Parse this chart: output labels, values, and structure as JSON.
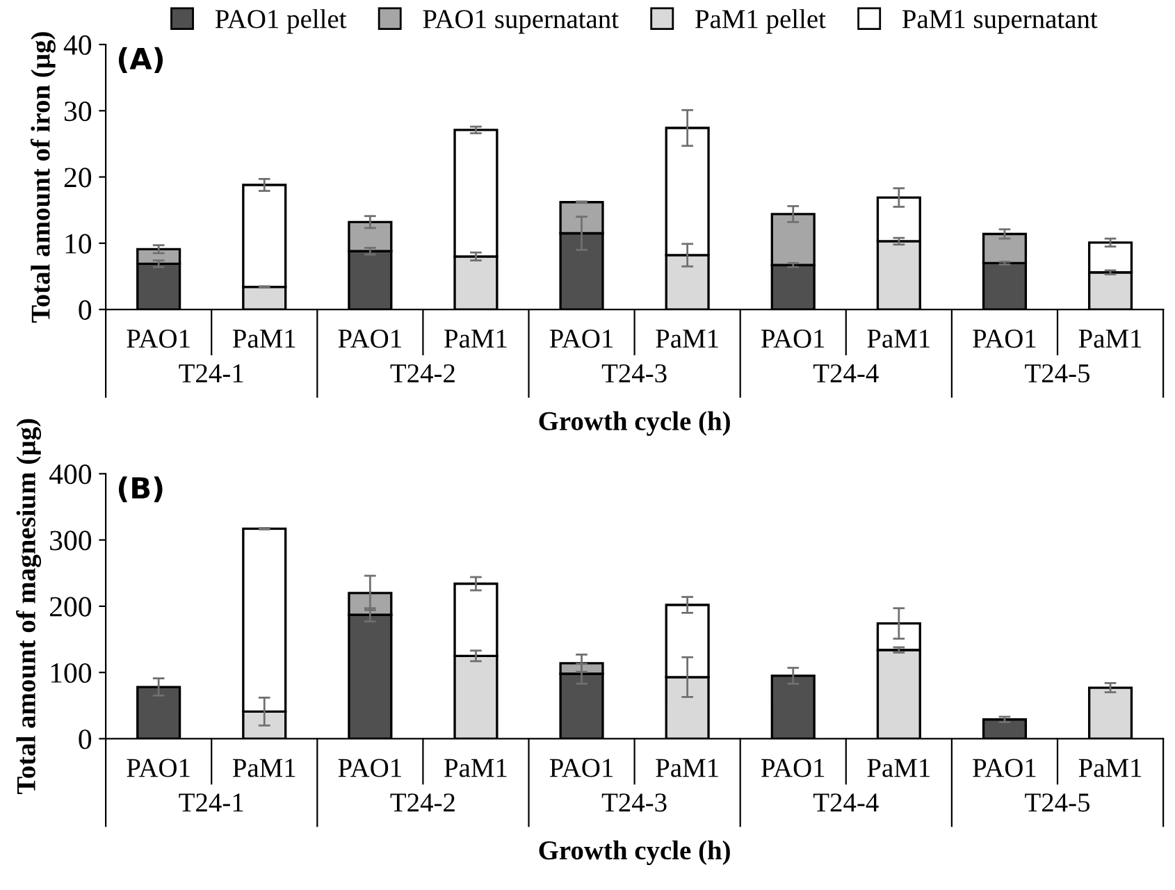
{
  "chart_data": [
    {
      "type": "bar",
      "title": "(A)",
      "xlabel": "Growth cycle (h)",
      "ylabel": "Total amount of iron (µg)",
      "stacked": true,
      "legend": "top",
      "grid": false,
      "categories": [
        "PAO1",
        "PaM1",
        "PAO1",
        "PaM1",
        "PAO1",
        "PaM1",
        "PAO1",
        "PaM1",
        "PAO1",
        "PaM1"
      ],
      "annotations": [
        "T24-1",
        "T24-2",
        "T24-3",
        "T24-4",
        "T24-5"
      ],
      "ylim": [
        0,
        40
      ],
      "yticks": [
        0,
        10,
        20,
        30,
        40
      ],
      "series": [
        {
          "name": "PAO1 pellet",
          "color": "#505050",
          "values": [
            6.9,
            null,
            8.8,
            null,
            11.5,
            null,
            6.7,
            null,
            7.0,
            null
          ],
          "errors": [
            0.5,
            null,
            0.5,
            null,
            2.5,
            null,
            0.3,
            null,
            0.2,
            null
          ]
        },
        {
          "name": "PAO1 supernatant",
          "color": "#a6a6a6",
          "values": [
            2.2,
            null,
            4.4,
            null,
            4.7,
            null,
            7.7,
            null,
            4.4,
            null
          ],
          "errors": [
            0.6,
            null,
            0.9,
            null,
            0.1,
            null,
            1.2,
            null,
            0.7,
            null
          ]
        },
        {
          "name": "PaM1 pellet",
          "color": "#d9d9d9",
          "values": [
            null,
            3.4,
            null,
            8.0,
            null,
            8.2,
            null,
            10.3,
            null,
            5.6
          ],
          "errors": [
            null,
            0.1,
            null,
            0.6,
            null,
            1.7,
            null,
            0.5,
            null,
            0.3
          ]
        },
        {
          "name": "PaM1 supernatant",
          "color": "#ffffff",
          "values": [
            null,
            15.4,
            null,
            19.1,
            null,
            19.2,
            null,
            6.6,
            null,
            4.5
          ],
          "errors": [
            null,
            0.9,
            null,
            0.5,
            null,
            2.7,
            null,
            1.4,
            null,
            0.6
          ]
        }
      ]
    },
    {
      "type": "bar",
      "title": "(B)",
      "xlabel": "Growth cycle (h)",
      "ylabel": "Total amount of magnesium (µg)",
      "stacked": true,
      "legend": false,
      "grid": false,
      "categories": [
        "PAO1",
        "PaM1",
        "PAO1",
        "PaM1",
        "PAO1",
        "PaM1",
        "PAO1",
        "PaM1",
        "PAO1",
        "PaM1"
      ],
      "annotations": [
        "T24-1",
        "T24-2",
        "T24-3",
        "T24-4",
        "T24-5"
      ],
      "ylim": [
        0,
        400
      ],
      "yticks": [
        0,
        100,
        200,
        300,
        400
      ],
      "series": [
        {
          "color": "#505050",
          "values": [
            78,
            null,
            187,
            null,
            98,
            null,
            95,
            null,
            29,
            null
          ],
          "errors": [
            13,
            null,
            10,
            null,
            15,
            null,
            12,
            null,
            4,
            null
          ]
        },
        {
          "color": "#a6a6a6",
          "values": [
            null,
            null,
            33,
            null,
            16,
            null,
            null,
            null,
            null,
            null
          ],
          "errors": [
            null,
            null,
            26,
            null,
            13,
            null,
            null,
            null,
            null,
            null
          ]
        },
        {
          "color": "#d9d9d9",
          "values": [
            null,
            41,
            null,
            125,
            null,
            93,
            null,
            134,
            null,
            77
          ],
          "errors": [
            null,
            21,
            null,
            8,
            null,
            30,
            null,
            4,
            null,
            7
          ]
        },
        {
          "color": "#ffffff",
          "values": [
            null,
            276,
            null,
            109,
            null,
            109,
            null,
            40,
            null,
            null
          ],
          "errors": [
            null,
            1,
            null,
            10,
            null,
            12,
            null,
            23,
            null,
            null
          ]
        }
      ]
    }
  ]
}
